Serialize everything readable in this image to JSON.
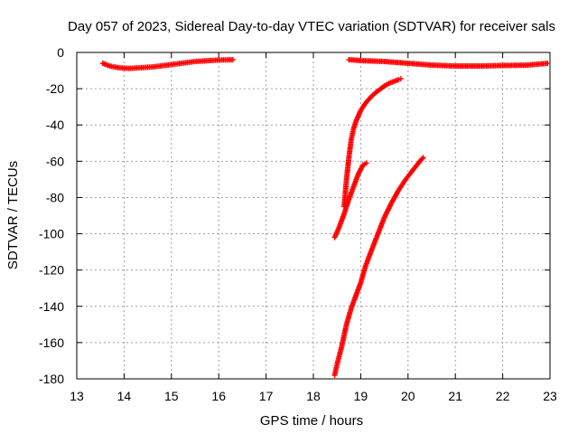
{
  "chart_data": {
    "type": "scatter",
    "title": "Day 057 of 2023, Sidereal Day-to-day VTEC variation (SDTVAR) for receiver sals",
    "xlabel": "GPS time / hours",
    "ylabel": "SDTVAR / TECUs",
    "xlim": [
      13,
      23
    ],
    "ylim": [
      -180,
      0
    ],
    "xticks": [
      "13",
      "14",
      "15",
      "16",
      "17",
      "18",
      "19",
      "20",
      "21",
      "22",
      "23"
    ],
    "yticks": [
      "0",
      "-20",
      "-40",
      "-60",
      "-80",
      "-100",
      "-120",
      "-140",
      "-160",
      "-180"
    ],
    "grid": true,
    "marker": "plus",
    "color": "#ff0000",
    "series": [
      {
        "points": [
          [
            13.55,
            -6
          ],
          [
            13.7,
            -7.5
          ],
          [
            13.9,
            -8.5
          ],
          [
            14.1,
            -8.8
          ],
          [
            14.3,
            -8.5
          ],
          [
            14.6,
            -8
          ],
          [
            14.9,
            -7
          ],
          [
            15.2,
            -6
          ],
          [
            15.5,
            -5
          ],
          [
            15.8,
            -4.5
          ],
          [
            16.0,
            -4.2
          ],
          [
            16.3,
            -4
          ]
        ]
      },
      {
        "points": [
          [
            18.75,
            -4
          ],
          [
            19.0,
            -4.5
          ],
          [
            19.5,
            -5
          ],
          [
            20.0,
            -6
          ],
          [
            20.5,
            -7
          ],
          [
            21.0,
            -7.5
          ],
          [
            21.5,
            -7.5
          ],
          [
            22.0,
            -7.2
          ],
          [
            22.5,
            -7
          ],
          [
            22.95,
            -6
          ]
        ]
      },
      {
        "points": [
          [
            18.65,
            -85
          ],
          [
            18.7,
            -70
          ],
          [
            18.75,
            -58
          ],
          [
            18.8,
            -48
          ],
          [
            18.85,
            -42
          ],
          [
            18.9,
            -38
          ],
          [
            19.0,
            -32
          ],
          [
            19.1,
            -28
          ],
          [
            19.2,
            -25
          ],
          [
            19.3,
            -22.5
          ],
          [
            19.4,
            -20.5
          ],
          [
            19.5,
            -18.5
          ],
          [
            19.6,
            -17
          ],
          [
            19.7,
            -16
          ],
          [
            19.8,
            -15
          ],
          [
            19.85,
            -14.5
          ]
        ]
      },
      {
        "points": [
          [
            18.45,
            -102
          ],
          [
            18.55,
            -96
          ],
          [
            18.65,
            -89
          ],
          [
            18.75,
            -81
          ],
          [
            18.85,
            -74
          ],
          [
            18.95,
            -67
          ],
          [
            19.05,
            -62
          ],
          [
            19.12,
            -61
          ]
        ]
      },
      {
        "points": [
          [
            18.45,
            -178
          ],
          [
            18.5,
            -172
          ],
          [
            18.6,
            -162
          ],
          [
            18.7,
            -150
          ],
          [
            18.8,
            -141
          ],
          [
            18.9,
            -134
          ],
          [
            19.0,
            -127
          ],
          [
            19.1,
            -118
          ],
          [
            19.2,
            -111
          ],
          [
            19.35,
            -101
          ],
          [
            19.5,
            -91
          ],
          [
            19.65,
            -83
          ],
          [
            19.8,
            -76
          ],
          [
            19.95,
            -70
          ],
          [
            20.1,
            -65
          ],
          [
            20.25,
            -60
          ],
          [
            20.32,
            -58
          ]
        ]
      }
    ]
  }
}
